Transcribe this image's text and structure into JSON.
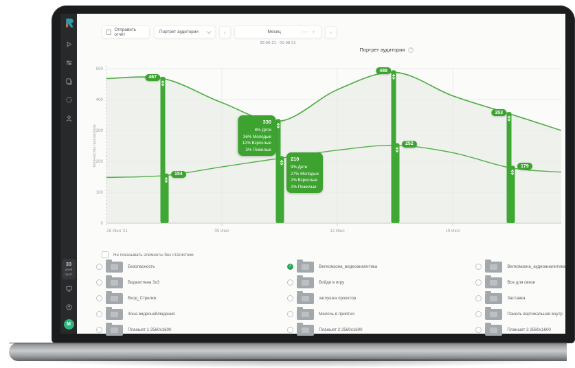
{
  "glyphs": {
    "prev": "‹",
    "next": "›",
    "minus": "—",
    "plus": "+",
    "help": "?",
    "check": "✓",
    "export_arrow": "↓"
  },
  "colors": {
    "accent": "#3da22f",
    "line": "#52ae49",
    "bar": "#3fa834",
    "area": "#eff1ec",
    "grid": "#e9ebe8",
    "axis": "#d8dad7",
    "tick_text": "#9ba1a1",
    "checked": "#2aa35c"
  },
  "sidebar": {
    "trial_days": "33",
    "trial_caption_1": "дней",
    "trial_caption_2": "проб.",
    "avatar_letter": "М"
  },
  "toolbar": {
    "send_report_label": "Отправить отчёт",
    "report_dropdown_value": "Портрет аудитории",
    "period_value": "Месяц",
    "date_range": "28-06-21 - 01-08-21"
  },
  "chart_data": {
    "type": "line",
    "title": "Портрет аудитории",
    "ylabel": "Количество просмотров",
    "ylim": [
      0,
      500
    ],
    "y_ticks": [
      0,
      100,
      200,
      300,
      400,
      500
    ],
    "x_ticks": [
      "28 Июн '21",
      "05 Июл",
      "12 Июл",
      "19 Июл"
    ],
    "grid": true,
    "series": [
      {
        "id": "upper",
        "line": [
          [
            0,
            468
          ],
          [
            0.5,
            467
          ],
          [
            1,
            390
          ],
          [
            1.5,
            330
          ],
          [
            2,
            432
          ],
          [
            2.5,
            488
          ],
          [
            3,
            412
          ],
          [
            3.5,
            353
          ],
          [
            3.94,
            300
          ]
        ],
        "markers": [
          {
            "pos": 0.5,
            "value": 467
          },
          {
            "pos": 1.5,
            "value": 330,
            "breakdown": [
              "8% Дети",
              "36% Молодые",
              "12% Взрослые",
              "3% Пожилые"
            ]
          },
          {
            "pos": 2.5,
            "value": 488
          },
          {
            "pos": 3.5,
            "value": 353
          }
        ]
      },
      {
        "id": "lower",
        "line": [
          [
            0,
            148
          ],
          [
            0.5,
            154
          ],
          [
            1,
            182
          ],
          [
            1.5,
            210
          ],
          [
            2,
            236
          ],
          [
            2.5,
            252
          ],
          [
            3,
            228
          ],
          [
            3.5,
            179
          ],
          [
            3.94,
            165
          ]
        ],
        "markers": [
          {
            "pos": 0.5,
            "value": 154
          },
          {
            "pos": 1.5,
            "value": 210,
            "breakdown": [
              "9% Дети",
              "27% Молодые",
              "2% Взрослые",
              "2% Пожилые"
            ]
          },
          {
            "pos": 2.5,
            "value": 252
          },
          {
            "pos": 3.5,
            "value": 179
          }
        ]
      }
    ]
  },
  "filters": {
    "hide_no_stats_label": "Не показывать элементы без статистики",
    "hide_no_stats_checked": false,
    "columns": [
      [
        {
          "label": "Безопасность",
          "checked": false
        },
        {
          "label": "Видеостена 3x3",
          "checked": false
        },
        {
          "label": "Вход_Стрелки",
          "checked": false
        },
        {
          "label": "Зона видеонаблюдения",
          "checked": false
        },
        {
          "label": "Планшет 1 2560x1600",
          "checked": false
        }
      ],
      [
        {
          "label": "Велкомзона_видеоаналитика",
          "checked": true
        },
        {
          "label": "Войди в игру",
          "checked": false
        },
        {
          "label": "заглушка проектор",
          "checked": false
        },
        {
          "label": "Мелочь в приятно",
          "checked": false
        },
        {
          "label": "Планшет 2 2560x1600",
          "checked": false
        }
      ],
      [
        {
          "label": "Велкомзона_аудиоаналитика",
          "checked": false
        },
        {
          "label": "Все для связи",
          "checked": false
        },
        {
          "label": "Заставка",
          "checked": false
        },
        {
          "label": "Панель вертикальная внутр",
          "checked": false
        },
        {
          "label": "Планшет 3 2560x1600",
          "checked": false
        }
      ]
    ]
  }
}
